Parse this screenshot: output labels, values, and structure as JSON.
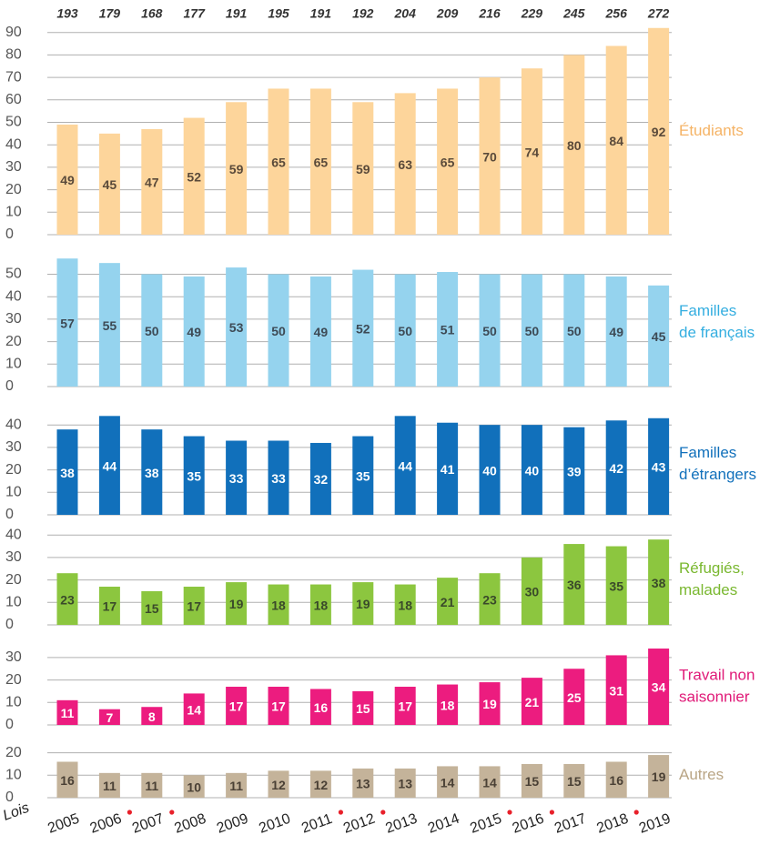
{
  "totals": [
    193,
    179,
    168,
    177,
    191,
    195,
    191,
    192,
    204,
    209,
    216,
    229,
    245,
    256,
    272
  ],
  "categories": [
    "2005",
    "2006",
    "2007",
    "2008",
    "2009",
    "2010",
    "2011",
    "2012",
    "2013",
    "2014",
    "2015",
    "2016",
    "2017",
    "2018",
    "2019"
  ],
  "laws_label": "Lois",
  "law": [
    false,
    true,
    true,
    false,
    false,
    false,
    true,
    true,
    false,
    false,
    true,
    true,
    false,
    true,
    false
  ],
  "law_color": "#e8202a",
  "chart_data": [
    {
      "type": "bar",
      "name": [
        "Étudiants"
      ],
      "color": "#fdd59b",
      "label_color": "#f5b365",
      "value_color": "#5a4a3a",
      "values": [
        49,
        45,
        47,
        52,
        59,
        65,
        65,
        59,
        63,
        65,
        70,
        74,
        80,
        84,
        92
      ],
      "ylim": [
        0,
        92
      ],
      "yticks": [
        0,
        10,
        20,
        30,
        40,
        50,
        60,
        70,
        80,
        90
      ],
      "grid": true
    },
    {
      "type": "bar",
      "name": [
        "Familles",
        "de français"
      ],
      "color": "#95d3ee",
      "label_color": "#34aee0",
      "value_color": "#3d4a55",
      "values": [
        57,
        55,
        50,
        49,
        53,
        50,
        49,
        52,
        50,
        51,
        50,
        50,
        50,
        49,
        45
      ],
      "ylim": [
        0,
        57
      ],
      "yticks": [
        0,
        10,
        20,
        30,
        40,
        50
      ],
      "grid": true
    },
    {
      "type": "bar",
      "name": [
        "Familles",
        "d’étrangers"
      ],
      "color": "#1170bb",
      "label_color": "#1170bb",
      "value_color": "#ffffff",
      "values": [
        38,
        44,
        38,
        35,
        33,
        33,
        32,
        35,
        44,
        41,
        40,
        40,
        39,
        42,
        43
      ],
      "ylim": [
        0,
        45
      ],
      "yticks": [
        0,
        10,
        20,
        30,
        40
      ],
      "grid": true
    },
    {
      "type": "bar",
      "name": [
        "Réfugiés,",
        "malades"
      ],
      "color": "#8cc63f",
      "label_color": "#7ab830",
      "value_color": "#3a4a2a",
      "values": [
        23,
        17,
        15,
        17,
        19,
        18,
        18,
        19,
        18,
        21,
        23,
        30,
        36,
        35,
        38
      ],
      "ylim": [
        0,
        40
      ],
      "yticks": [
        0,
        10,
        20,
        30,
        40
      ],
      "grid": true
    },
    {
      "type": "bar",
      "name": [
        "Travail non",
        "saisonnier"
      ],
      "color": "#ec1c7f",
      "label_color": "#e01a78",
      "value_color": "#ffffff",
      "values": [
        11,
        7,
        8,
        14,
        17,
        17,
        16,
        15,
        17,
        18,
        19,
        21,
        25,
        31,
        34
      ],
      "ylim": [
        0,
        34
      ],
      "yticks": [
        0,
        10,
        20,
        30
      ],
      "grid": true
    },
    {
      "type": "bar",
      "name": [
        "Autres"
      ],
      "color": "#c4b39a",
      "label_color": "#b9a585",
      "value_color": "#4a4035",
      "values": [
        16,
        11,
        11,
        10,
        11,
        12,
        12,
        13,
        13,
        14,
        14,
        15,
        15,
        16,
        19
      ],
      "ylim": [
        0,
        20
      ],
      "yticks": [
        0,
        10,
        20
      ],
      "grid": true
    }
  ]
}
